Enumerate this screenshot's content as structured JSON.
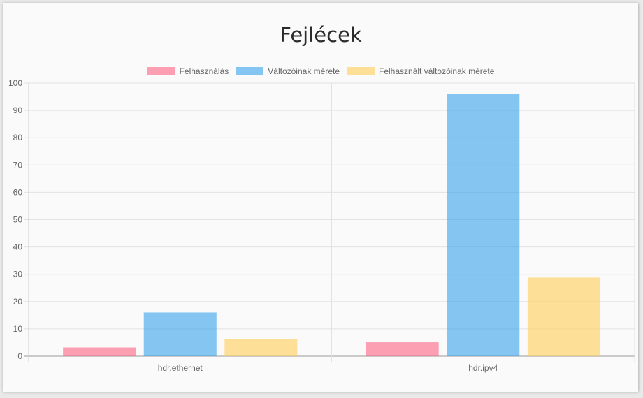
{
  "chart_data": {
    "type": "bar",
    "title": "Fejlécek",
    "categories": [
      "hdr.ethernet",
      "hdr.ipv4"
    ],
    "series": [
      {
        "name": "Felhasználás",
        "values": [
          3.2,
          5.1
        ],
        "color": "#ff6384"
      },
      {
        "name": "Változóinak mérete",
        "values": [
          16,
          96
        ],
        "color": "#36a2eb"
      },
      {
        "name": "Felhasznált változóinak mérete",
        "values": [
          6.3,
          28.8
        ],
        "color": "#ffcd56"
      }
    ],
    "ylim": [
      0,
      100
    ],
    "yticks": [
      "0",
      "10",
      "20",
      "30",
      "40",
      "50",
      "60",
      "70",
      "80",
      "90",
      "100"
    ],
    "grid": true,
    "legend_position": "top"
  }
}
